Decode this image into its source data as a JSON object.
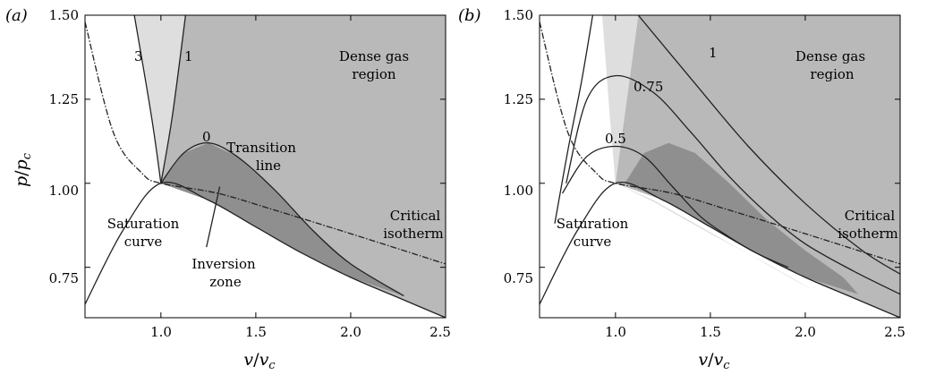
{
  "chart_data": [
    {
      "panel_label": "(a)",
      "type": "line",
      "xlabel": "v/v_c",
      "ylabel": "p/p_c",
      "xlim": [
        0.6,
        2.5
      ],
      "ylim": [
        0.6,
        1.5
      ],
      "xticks": [
        "1.0",
        "1.5",
        "2.0",
        "2.5"
      ],
      "yticks": [
        "0.75",
        "1.00",
        "1.25",
        "1.50"
      ],
      "annotations": {
        "dense": [
          "Dense gas",
          "region"
        ],
        "transition": [
          "Transition",
          "line"
        ],
        "saturation": [
          "Saturation",
          "curve"
        ],
        "inversion": [
          "Inversion",
          "zone"
        ],
        "critical": [
          "Critical",
          "isotherm"
        ],
        "label_3": "3",
        "label_1": "1",
        "label_0": "0"
      },
      "series": [
        {
          "label": "saturation curve",
          "points": [
            [
              0.6,
              0.64
            ],
            [
              0.8,
              0.86
            ],
            [
              1.0,
              1.0
            ],
            [
              1.25,
              0.95
            ],
            [
              1.5,
              0.87
            ],
            [
              1.75,
              0.79
            ],
            [
              2.0,
              0.72
            ],
            [
              2.25,
              0.66
            ],
            [
              2.5,
              0.6
            ]
          ]
        },
        {
          "label": "critical isotherm",
          "points": [
            [
              0.6,
              1.48
            ],
            [
              0.75,
              1.15
            ],
            [
              0.9,
              1.03
            ],
            [
              1.0,
              1.0
            ],
            [
              1.3,
              0.97
            ],
            [
              1.6,
              0.92
            ],
            [
              2.0,
              0.85
            ],
            [
              2.5,
              0.76
            ]
          ]
        },
        {
          "label": "3",
          "points": [
            [
              0.86,
              1.5
            ],
            [
              0.95,
              1.2
            ],
            [
              1.0,
              1.0
            ]
          ]
        },
        {
          "label": "1",
          "points": [
            [
              1.0,
              1.0
            ],
            [
              1.06,
              1.2
            ],
            [
              1.13,
              1.5
            ]
          ]
        },
        {
          "label": "0",
          "points": [
            [
              1.0,
              1.0
            ],
            [
              1.12,
              1.09
            ],
            [
              1.25,
              1.12
            ],
            [
              1.4,
              1.08
            ],
            [
              1.6,
              0.98
            ],
            [
              1.8,
              0.86
            ],
            [
              2.0,
              0.76
            ],
            [
              2.28,
              0.665
            ]
          ]
        }
      ]
    },
    {
      "panel_label": "(b)",
      "type": "line",
      "xlabel": "v/v_c",
      "ylabel": "",
      "xlim": [
        0.6,
        2.5
      ],
      "ylim": [
        0.6,
        1.5
      ],
      "xticks": [
        "1.0",
        "1.5",
        "2.0",
        "2.5"
      ],
      "yticks": [
        "0.75",
        "1.00",
        "1.25",
        "1.50"
      ],
      "annotations": {
        "dense": [
          "Dense gas",
          "region"
        ],
        "saturation": [
          "Saturation",
          "curve"
        ],
        "critical": [
          "Critical",
          "isotherm"
        ],
        "label_1": "1",
        "label_075": "0.75",
        "label_05": "0.5"
      },
      "series": [
        {
          "label": "saturation curve",
          "points": [
            [
              0.6,
              0.64
            ],
            [
              0.8,
              0.86
            ],
            [
              1.0,
              1.0
            ],
            [
              1.25,
              0.95
            ],
            [
              1.5,
              0.87
            ],
            [
              1.75,
              0.79
            ],
            [
              2.0,
              0.72
            ],
            [
              2.25,
              0.66
            ],
            [
              2.5,
              0.6
            ]
          ]
        },
        {
          "label": "critical isotherm",
          "points": [
            [
              0.6,
              1.48
            ],
            [
              0.75,
              1.15
            ],
            [
              0.9,
              1.03
            ],
            [
              1.0,
              1.0
            ],
            [
              1.3,
              0.97
            ],
            [
              1.6,
              0.92
            ],
            [
              2.0,
              0.85
            ],
            [
              2.5,
              0.76
            ]
          ]
        },
        {
          "label": "1",
          "points": [
            [
              1.12,
              1.5
            ],
            [
              1.4,
              1.31
            ],
            [
              1.7,
              1.11
            ],
            [
              2.0,
              0.94
            ],
            [
              2.3,
              0.8
            ],
            [
              2.5,
              0.73
            ]
          ]
        },
        {
          "label": "0.75",
          "points": [
            [
              0.74,
              1.0
            ],
            [
              0.85,
              1.25
            ],
            [
              1.0,
              1.32
            ],
            [
              1.2,
              1.27
            ],
            [
              1.4,
              1.15
            ],
            [
              1.6,
              1.02
            ],
            [
              1.8,
              0.91
            ],
            [
              2.0,
              0.82
            ],
            [
              2.25,
              0.74
            ],
            [
              2.5,
              0.67
            ]
          ]
        },
        {
          "label": "0.5",
          "points": [
            [
              0.72,
              0.97
            ],
            [
              0.85,
              1.08
            ],
            [
              1.0,
              1.11
            ],
            [
              1.15,
              1.08
            ],
            [
              1.3,
              0.99
            ],
            [
              1.45,
              0.9
            ],
            [
              1.6,
              0.84
            ],
            [
              1.75,
              0.79
            ],
            [
              1.91,
              0.75
            ]
          ]
        }
      ]
    }
  ]
}
